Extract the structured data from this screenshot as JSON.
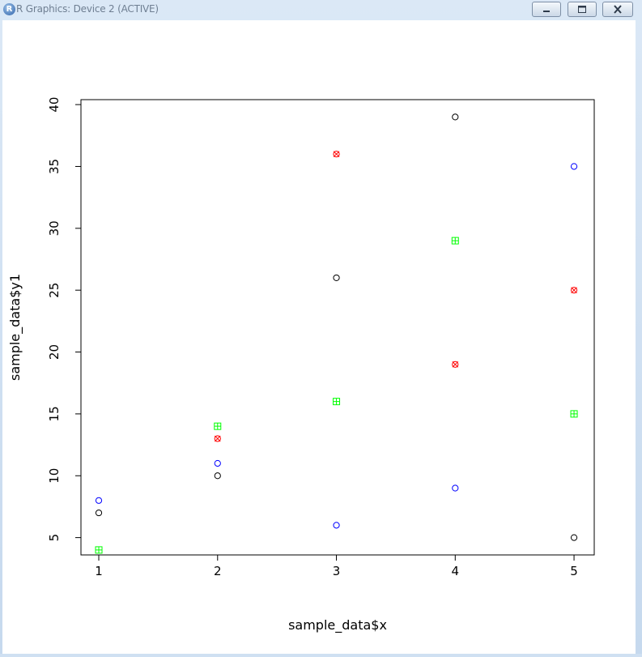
{
  "window": {
    "title": "R Graphics: Device 2 (ACTIVE)",
    "icon_letter": "R",
    "controls": [
      "minimize-icon",
      "maximize-icon",
      "close-icon"
    ]
  },
  "chart_data": {
    "type": "scatter",
    "title": "",
    "xlabel": "sample_data$x",
    "ylabel": "sample_data$y1",
    "xlim": [
      0.85,
      5.17
    ],
    "ylim": [
      3.6,
      40.4
    ],
    "xticks": [
      1,
      2,
      3,
      4,
      5
    ],
    "yticks": [
      5,
      10,
      15,
      20,
      25,
      30,
      35,
      40
    ],
    "grid": false,
    "legend": "none",
    "series": [
      {
        "color": "#000000",
        "marker": "circle",
        "points": [
          [
            1,
            7
          ],
          [
            2,
            10
          ],
          [
            3,
            26
          ],
          [
            4,
            39
          ],
          [
            5,
            5
          ]
        ]
      },
      {
        "color": "#0000ff",
        "marker": "circle",
        "points": [
          [
            1,
            8
          ],
          [
            2,
            11
          ],
          [
            3,
            6
          ],
          [
            4,
            9
          ],
          [
            5,
            35
          ]
        ]
      },
      {
        "color": "#ff0000",
        "marker": "circle-x",
        "points": [
          [
            2,
            13
          ],
          [
            3,
            36
          ],
          [
            4,
            19
          ],
          [
            5,
            25
          ]
        ]
      },
      {
        "color": "#00ff00",
        "marker": "square-plus",
        "points": [
          [
            1,
            4
          ],
          [
            2,
            14
          ],
          [
            3,
            16
          ],
          [
            4,
            29
          ],
          [
            5,
            15
          ]
        ]
      }
    ]
  }
}
